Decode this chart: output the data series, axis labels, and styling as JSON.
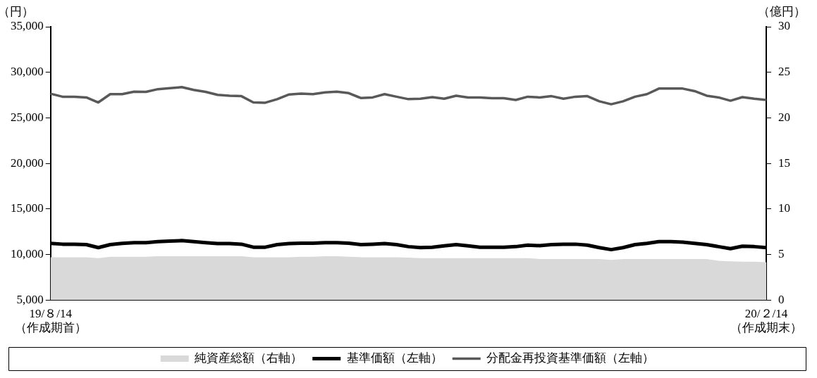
{
  "chart_data": {
    "type": "line",
    "ylabel": "（円）",
    "y2label": "（億円）",
    "categories": [
      "19/８/14\n（作成期首）",
      null,
      null,
      null,
      null,
      null,
      null,
      null,
      null,
      null,
      null,
      null,
      null,
      null,
      null,
      null,
      null,
      null,
      null,
      null,
      null,
      null,
      null,
      null,
      null,
      null,
      null,
      null,
      null,
      null,
      null,
      null,
      null,
      null,
      null,
      null,
      null,
      null,
      null,
      null,
      null,
      null,
      null,
      null,
      null,
      null,
      null,
      null,
      null,
      null,
      null,
      null,
      null,
      null,
      null,
      null,
      null,
      null,
      null,
      null,
      "20/２/14\n（作成期末）"
    ],
    "ylim": [
      5000,
      35000
    ],
    "yticks": [
      {
        "value": 5000,
        "label": "5,000"
      },
      {
        "value": 10000,
        "label": "10,000"
      },
      {
        "value": 15000,
        "label": "15,000"
      },
      {
        "value": 20000,
        "label": "20,000"
      },
      {
        "value": 25000,
        "label": "25,000"
      },
      {
        "value": 30000,
        "label": "30,000"
      },
      {
        "value": 35000,
        "label": "35,000"
      }
    ],
    "y2lim": [
      0,
      30
    ],
    "y2ticks": [
      0,
      5,
      10,
      15,
      20,
      25,
      30
    ],
    "legend": "bottom",
    "marker": "none",
    "series": [
      {
        "type": "area",
        "name": "純資産総額（右軸）",
        "color": "#d9d9d9",
        "axis": "y2",
        "values": [
          4.7,
          4.7,
          4.7,
          4.7,
          4.6,
          4.75,
          4.75,
          4.75,
          4.75,
          4.8,
          4.8,
          4.8,
          4.8,
          4.8,
          4.8,
          4.8,
          4.8,
          4.7,
          4.7,
          4.7,
          4.7,
          4.75,
          4.75,
          4.8,
          4.8,
          4.75,
          4.7,
          4.7,
          4.7,
          4.7,
          4.65,
          4.6,
          4.6,
          4.6,
          4.6,
          4.6,
          4.6,
          4.6,
          4.6,
          4.6,
          4.6,
          4.5,
          4.5,
          4.5,
          4.5,
          4.5,
          4.5,
          4.4,
          4.5,
          4.5,
          4.5,
          4.5,
          4.5,
          4.5,
          4.5,
          4.5,
          4.3,
          4.25,
          4.2,
          4.2,
          4.15
        ]
      },
      {
        "name": "基準価額（左軸）",
        "color": "#000000",
        "values": [
          11220,
          11130,
          11130,
          11080,
          10750,
          11080,
          11220,
          11300,
          11300,
          11410,
          11470,
          11520,
          11410,
          11300,
          11190,
          11190,
          11130,
          10800,
          10800,
          11080,
          11190,
          11240,
          11240,
          11300,
          11300,
          11240,
          11080,
          11130,
          11190,
          11080,
          10860,
          10750,
          10800,
          10940,
          11080,
          10940,
          10800,
          10800,
          10800,
          10860,
          11020,
          10970,
          11080,
          11130,
          11130,
          11020,
          10750,
          10530,
          10750,
          11080,
          11220,
          11410,
          11410,
          11350,
          11220,
          11080,
          10860,
          10640,
          10910,
          10860,
          10750
        ]
      },
      {
        "name": "分配金再投資基準価額（左軸）",
        "color": "#595959",
        "values": [
          27650,
          27320,
          27320,
          27240,
          26690,
          27600,
          27600,
          27870,
          27850,
          28150,
          28260,
          28370,
          28070,
          27850,
          27520,
          27430,
          27380,
          26690,
          26660,
          27050,
          27570,
          27650,
          27600,
          27790,
          27870,
          27710,
          27180,
          27240,
          27600,
          27320,
          27050,
          27100,
          27270,
          27100,
          27430,
          27240,
          27240,
          27160,
          27160,
          26960,
          27320,
          27240,
          27380,
          27100,
          27320,
          27380,
          26820,
          26490,
          26820,
          27320,
          27600,
          28210,
          28210,
          28210,
          27930,
          27430,
          27240,
          26880,
          27270,
          27100,
          26960
        ]
      }
    ]
  }
}
